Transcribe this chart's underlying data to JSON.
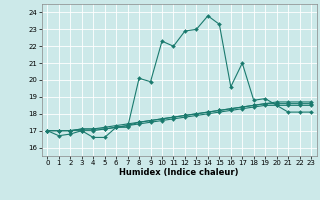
{
  "title": "",
  "xlabel": "Humidex (Indice chaleur)",
  "bg_color": "#cce9e9",
  "line_color": "#1a7a6e",
  "grid_color": "#ffffff",
  "ylim": [
    15.5,
    24.5
  ],
  "xlim": [
    -0.5,
    23.5
  ],
  "yticks": [
    16,
    17,
    18,
    19,
    20,
    21,
    22,
    23,
    24
  ],
  "xticks": [
    0,
    1,
    2,
    3,
    4,
    5,
    6,
    7,
    8,
    9,
    10,
    11,
    12,
    13,
    14,
    15,
    16,
    17,
    18,
    19,
    20,
    21,
    22,
    23
  ],
  "series": [
    [
      17.0,
      16.7,
      16.8,
      17.0,
      16.6,
      16.6,
      17.2,
      17.2,
      20.1,
      19.9,
      22.3,
      22.0,
      22.9,
      23.0,
      23.8,
      23.3,
      19.6,
      21.0,
      18.8,
      18.9,
      18.5,
      18.1,
      18.1,
      18.1
    ],
    [
      17.0,
      17.0,
      17.0,
      17.0,
      17.0,
      17.1,
      17.2,
      17.3,
      17.5,
      17.6,
      17.7,
      17.8,
      17.9,
      18.0,
      18.1,
      18.2,
      18.3,
      18.4,
      18.5,
      18.6,
      18.6,
      18.6,
      18.6,
      18.6
    ],
    [
      17.0,
      17.0,
      17.0,
      17.1,
      17.1,
      17.1,
      17.2,
      17.3,
      17.4,
      17.5,
      17.6,
      17.7,
      17.8,
      17.9,
      18.0,
      18.1,
      18.2,
      18.3,
      18.4,
      18.5,
      18.5,
      18.5,
      18.5,
      18.5
    ],
    [
      17.0,
      17.0,
      17.0,
      17.1,
      17.1,
      17.2,
      17.3,
      17.4,
      17.5,
      17.6,
      17.7,
      17.8,
      17.9,
      18.0,
      18.1,
      18.2,
      18.3,
      18.4,
      18.5,
      18.6,
      18.7,
      18.7,
      18.7,
      18.7
    ]
  ]
}
